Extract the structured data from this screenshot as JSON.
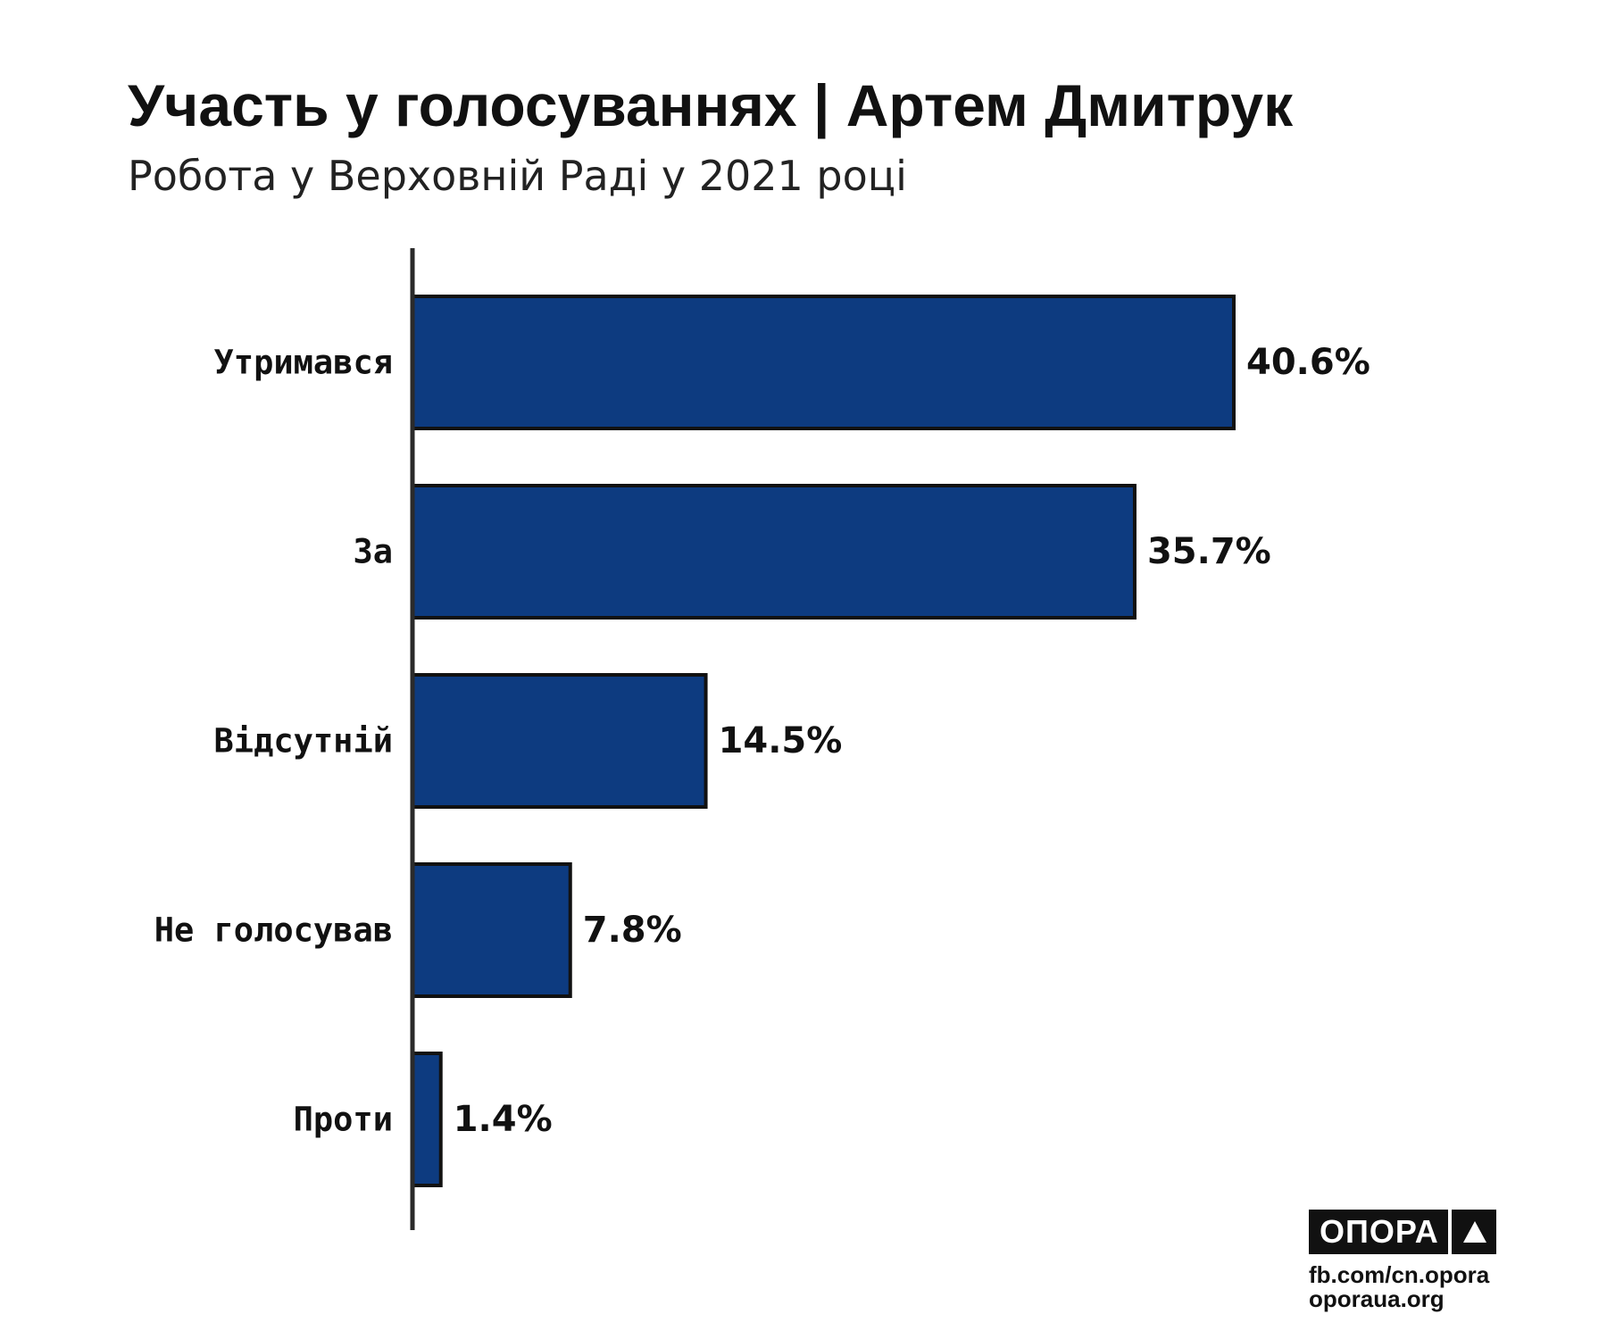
{
  "header": {
    "title": "Участь у голосуваннях | Артем Дмитрук",
    "subtitle": "Робота у Верховній Раді у 2021 році"
  },
  "chart_data": {
    "type": "bar",
    "orientation": "horizontal",
    "title": "Участь у голосуваннях | Артем Дмитрук",
    "subtitle": "Робота у Верховній Раді у 2021 році",
    "categories": [
      "Утримався",
      "За",
      "Відсутній",
      "Не голосував",
      "Проти"
    ],
    "values": [
      40.6,
      35.7,
      14.5,
      7.8,
      1.4
    ],
    "value_labels": [
      "40.6%",
      "35.7%",
      "14.5%",
      "7.8%",
      "1.4%"
    ],
    "unit": "%",
    "xlabel": "",
    "ylabel": "",
    "xlim": [
      0,
      40.6
    ],
    "grid": false,
    "legend": "none",
    "bar_color": "#0d3b80",
    "bar_edge_color": "#111111"
  },
  "logo": {
    "name": "ОПОРА",
    "icon": "triangle-icon",
    "links": [
      "fb.com/cn.opora",
      "oporaua.org"
    ]
  }
}
